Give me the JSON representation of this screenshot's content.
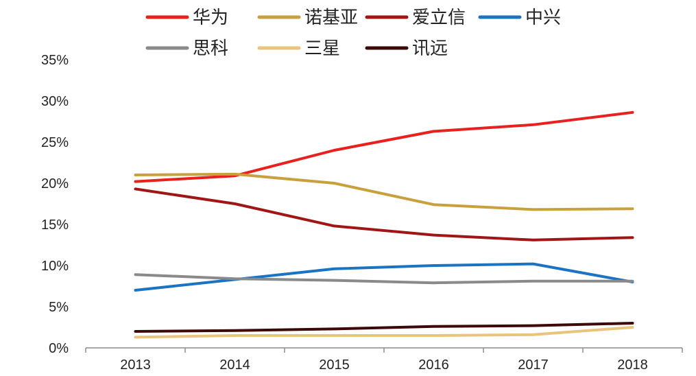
{
  "chart_data": {
    "type": "line",
    "title": "",
    "xlabel": "",
    "ylabel": "",
    "categories": [
      "2013",
      "2014",
      "2015",
      "2016",
      "2017",
      "2018"
    ],
    "ylim": [
      0,
      35
    ],
    "yticks": [
      0,
      5,
      10,
      15,
      20,
      25,
      30,
      35
    ],
    "ytick_labels": [
      "0%",
      "5%",
      "10%",
      "15%",
      "20%",
      "25%",
      "30%",
      "35%"
    ],
    "grid": false,
    "legend_position": "top",
    "series": [
      {
        "name": "华为",
        "color": "#e8201e",
        "values": [
          20.2,
          20.9,
          24.0,
          26.3,
          27.1,
          28.6
        ]
      },
      {
        "name": "诺基亚",
        "color": "#c9a13c",
        "values": [
          21.0,
          21.1,
          20.0,
          17.4,
          16.8,
          16.9
        ]
      },
      {
        "name": "爱立信",
        "color": "#a01616",
        "values": [
          19.3,
          17.5,
          14.8,
          13.7,
          13.1,
          13.4
        ]
      },
      {
        "name": "中兴",
        "color": "#1b74c2",
        "values": [
          7.0,
          8.3,
          9.6,
          10.0,
          10.2,
          8.0
        ]
      },
      {
        "name": "思科",
        "color": "#8a8a8a",
        "values": [
          8.9,
          8.4,
          8.2,
          7.9,
          8.1,
          8.1
        ]
      },
      {
        "name": "三星",
        "color": "#e9c47c",
        "values": [
          1.3,
          1.5,
          1.5,
          1.5,
          1.6,
          2.5
        ]
      },
      {
        "name": "讯远",
        "color": "#3d0808",
        "values": [
          2.0,
          2.1,
          2.3,
          2.6,
          2.7,
          3.0
        ]
      }
    ]
  }
}
